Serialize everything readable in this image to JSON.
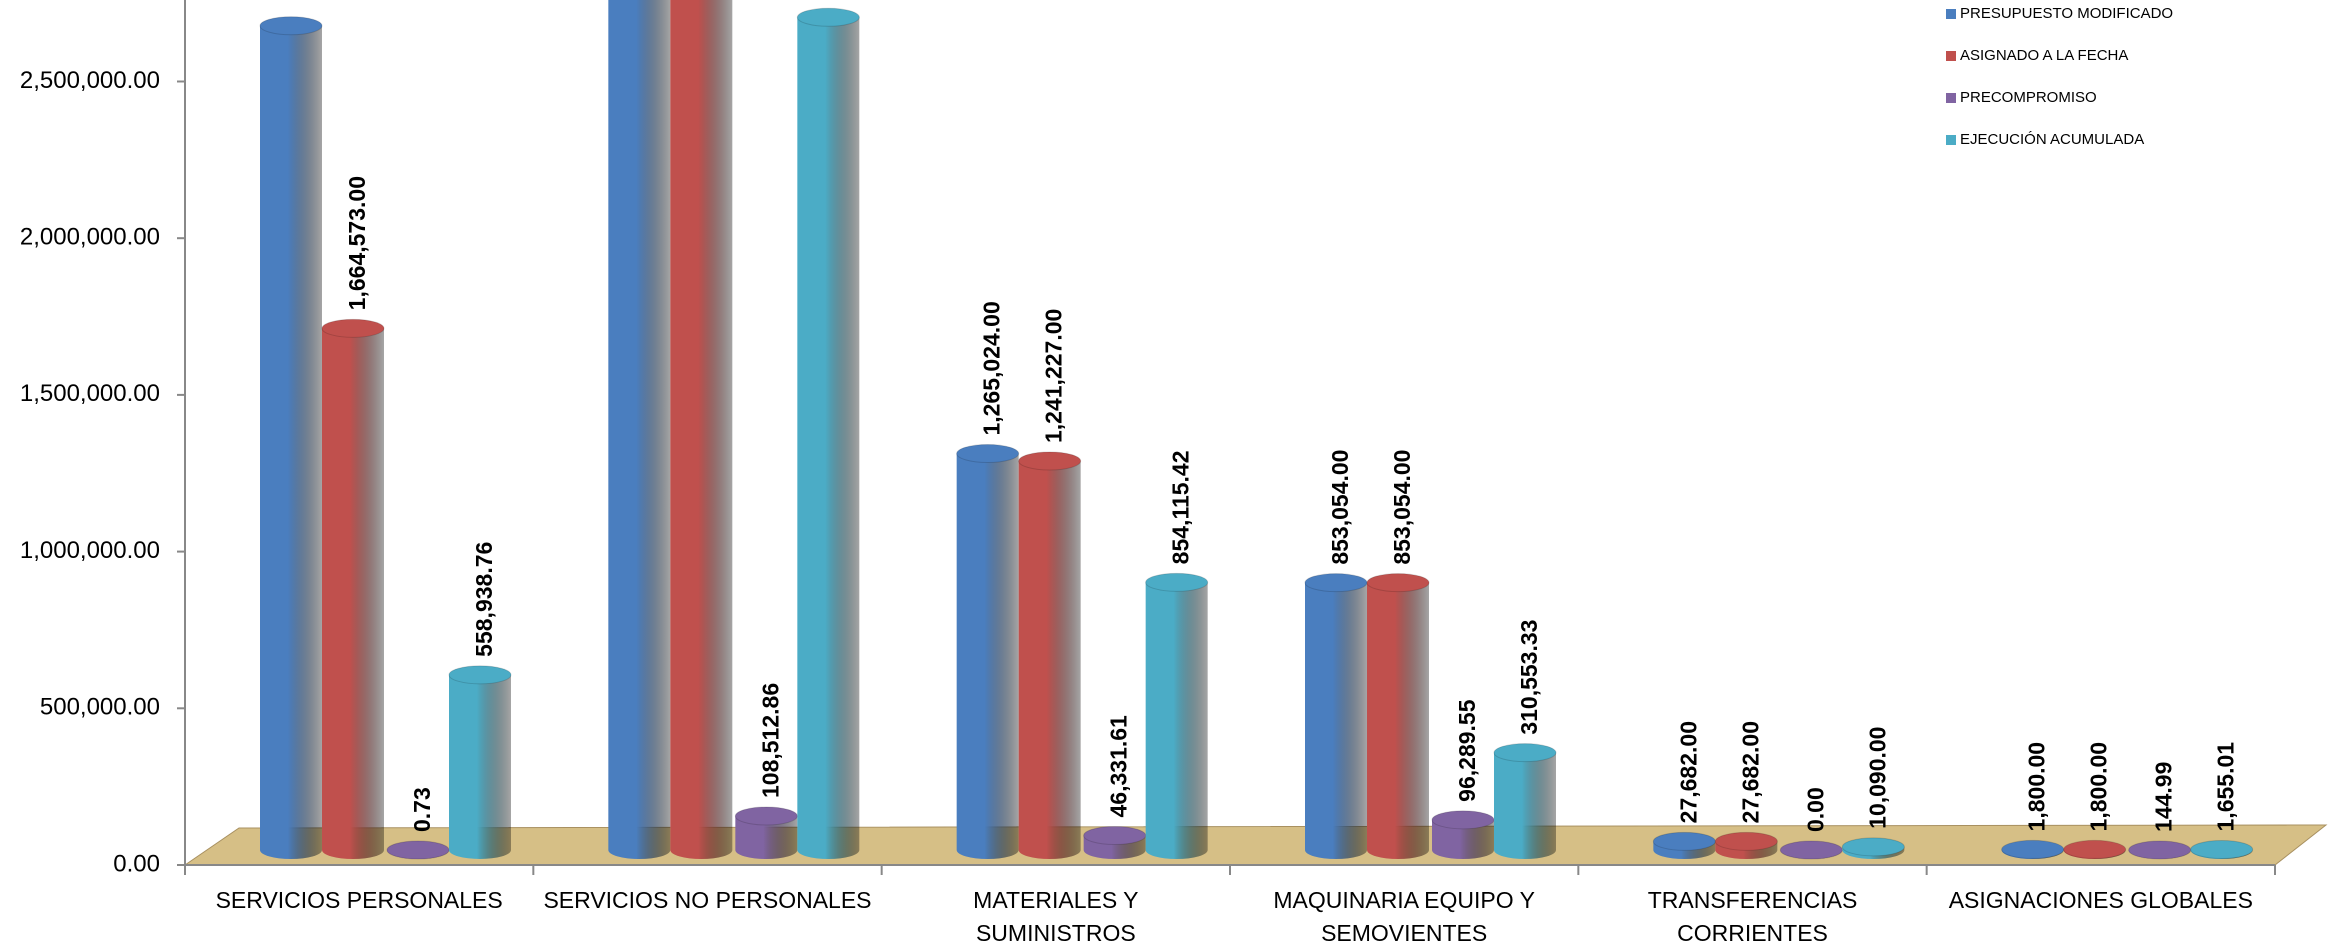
{
  "chart_data": {
    "type": "bar3d",
    "categories": [
      "SERVICIOS PERSONALES",
      "SERVICIOS NO PERSONALES",
      "MATERIALES Y SUMINISTROS",
      "MAQUINARIA EQUIPO Y SEMOVIENTES",
      "TRANSFERENCIAS CORRIENTES",
      "ASIGNACIONES GLOBALES"
    ],
    "series": [
      {
        "name": "PRESUPUESTO MODIFICADO",
        "color": "#4a7ebf",
        "values": [
          2630000,
          2950000,
          1265024,
          853054,
          27682,
          1800
        ],
        "value_labels": [
          null,
          null,
          "1,265,024.00",
          "853,054.00",
          "27,682.00",
          "1,800.00"
        ]
      },
      {
        "name": "ASIGNADO A LA FECHA",
        "color": "#c0504d",
        "values": [
          1664573,
          2900000,
          1241227,
          853054,
          27682,
          1800
        ],
        "value_labels": [
          "1,664,573.00",
          null,
          "1,241,227.00",
          "853,054.00",
          "27,682.00",
          "1,800.00"
        ]
      },
      {
        "name": "PRECOMPROMISO",
        "color": "#8064a2",
        "values": [
          0.73,
          108512.86,
          46331.61,
          96289.55,
          0,
          144.99
        ],
        "value_labels": [
          "0.73",
          "108,512.86",
          "46,331.61",
          "96,289.55",
          "0.00",
          "144.99"
        ]
      },
      {
        "name": "EJECUCIÓN ACUMULADA",
        "color": "#4bacc6",
        "values": [
          558938.76,
          2657000,
          854115.42,
          310553.33,
          10090,
          1655.01
        ],
        "value_labels": [
          "558,938.76",
          null,
          "854,115.42",
          "310,553.33",
          "10,090.00",
          "1,655.01"
        ]
      }
    ],
    "ylim": [
      0,
      2760000
    ],
    "yticks": [
      {
        "value": 0,
        "label": "0.00"
      },
      {
        "value": 500000,
        "label": "500,000.00"
      },
      {
        "value": 1000000,
        "label": "1,000,000.00"
      },
      {
        "value": 1500000,
        "label": "1,500,000.00"
      },
      {
        "value": 2000000,
        "label": "2,000,000.00"
      },
      {
        "value": 2500000,
        "label": "2,500,000.00"
      }
    ],
    "legend": "top-right"
  }
}
